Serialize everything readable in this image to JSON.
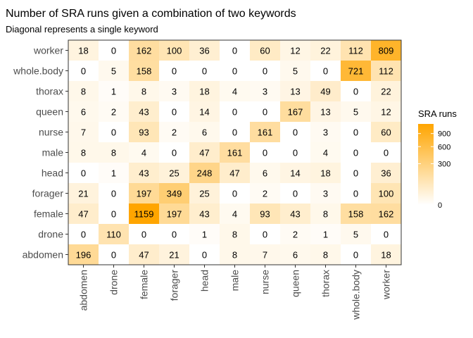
{
  "chart_data": {
    "type": "heatmap",
    "title": "Number of SRA runs given a combination of two keywords",
    "subtitle": "Diagonal represents a single keyword",
    "x_categories": [
      "abdomen",
      "drone",
      "female",
      "forager",
      "head",
      "male",
      "nurse",
      "queen",
      "thorax",
      "whole.body",
      "worker"
    ],
    "y_categories": [
      "abdomen",
      "drone",
      "female",
      "forager",
      "head",
      "male",
      "nurse",
      "queen",
      "thorax",
      "whole.body",
      "worker"
    ],
    "values": [
      [
        196,
        0,
        47,
        21,
        0,
        8,
        7,
        6,
        8,
        0,
        18
      ],
      [
        0,
        110,
        0,
        0,
        1,
        8,
        0,
        2,
        1,
        5,
        0
      ],
      [
        47,
        0,
        1159,
        197,
        43,
        4,
        93,
        43,
        8,
        158,
        162
      ],
      [
        21,
        0,
        197,
        349,
        25,
        0,
        2,
        0,
        3,
        0,
        100
      ],
      [
        0,
        1,
        43,
        25,
        248,
        47,
        6,
        14,
        18,
        0,
        36
      ],
      [
        8,
        8,
        4,
        0,
        47,
        161,
        0,
        0,
        4,
        0,
        0
      ],
      [
        7,
        0,
        93,
        2,
        6,
        0,
        161,
        0,
        3,
        0,
        60
      ],
      [
        6,
        2,
        43,
        0,
        14,
        0,
        0,
        167,
        13,
        5,
        12
      ],
      [
        8,
        1,
        8,
        3,
        18,
        4,
        3,
        13,
        49,
        0,
        22
      ],
      [
        0,
        5,
        158,
        0,
        0,
        0,
        0,
        5,
        0,
        721,
        112
      ],
      [
        18,
        0,
        162,
        100,
        36,
        0,
        60,
        12,
        22,
        112,
        809
      ]
    ],
    "color_scale": {
      "low": "#ffffff",
      "high": "#ffa500",
      "min": 0,
      "max": 1159
    },
    "legend": {
      "title": "SRA runs",
      "ticks": [
        0,
        300,
        600,
        900
      ],
      "position": "right"
    }
  }
}
